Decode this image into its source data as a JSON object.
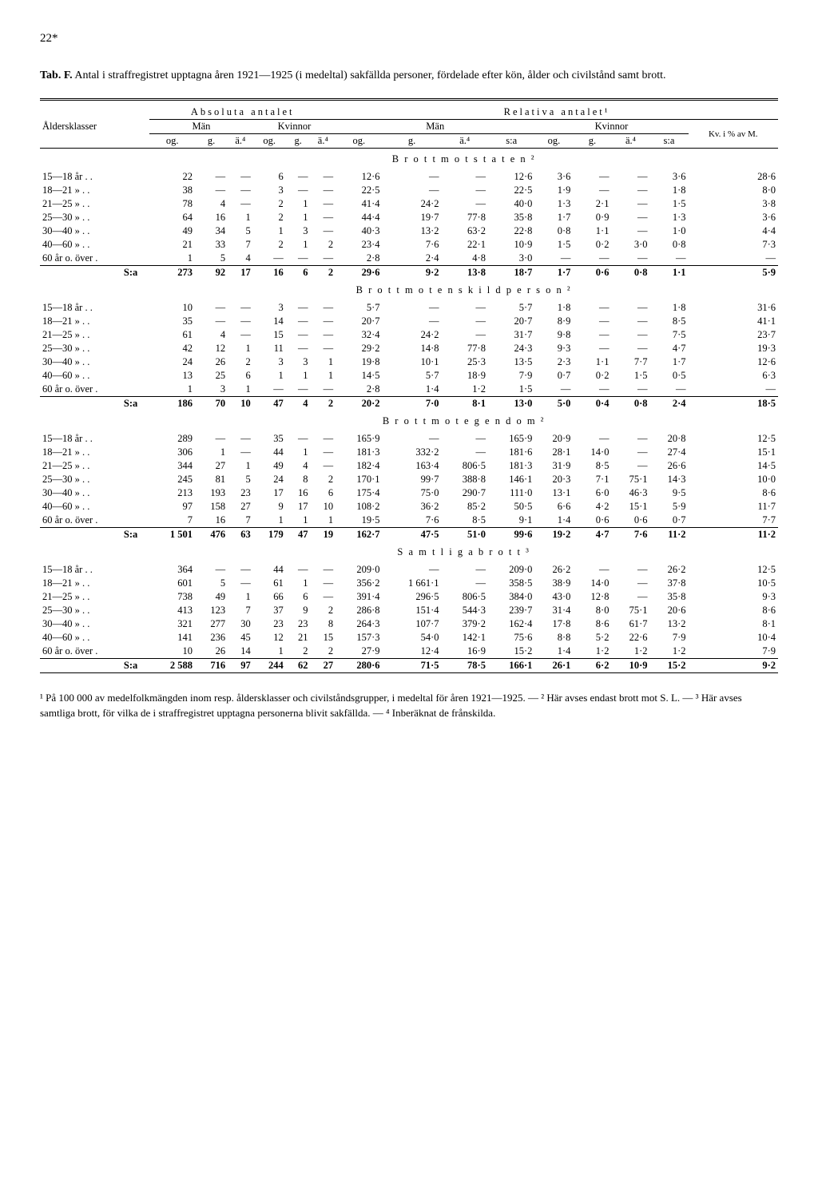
{
  "page": "22*",
  "title_lead": "Tab. F.",
  "title_rest": "Antal i straffregistret upptagna åren 1921—1925 (i medeltal) sakfällda personer, fördelade efter kön, ålder och civilstånd samt brott.",
  "head": {
    "abs": "Absoluta antalet",
    "rel": "Relativa antalet¹",
    "klass": "Åldersklasser",
    "man": "Män",
    "kv": "Kvinnor",
    "kvi": "Kv. i % av M.",
    "og": "og.",
    "g": "g.",
    "a4": "ä.⁴",
    "sa": "s:a"
  },
  "sections": [
    {
      "title": "B r o t t   m o t   s t a t e n ²",
      "rows": [
        {
          "k": "15—18 år  . .",
          "c": [
            "22",
            "—",
            "—",
            "6",
            "—",
            "—",
            "12·6",
            "—",
            "—",
            "12·6",
            "3·6",
            "—",
            "—",
            "3·6",
            "28·6"
          ]
        },
        {
          "k": "18—21  »  . .",
          "c": [
            "38",
            "—",
            "—",
            "3",
            "—",
            "—",
            "22·5",
            "—",
            "—",
            "22·5",
            "1·9",
            "—",
            "—",
            "1·8",
            "8·0"
          ]
        },
        {
          "k": "21—25  »  . .",
          "c": [
            "78",
            "4",
            "—",
            "2",
            "1",
            "—",
            "41·4",
            "24·2",
            "—",
            "40·0",
            "1·3",
            "2·1",
            "—",
            "1·5",
            "3·8"
          ]
        },
        {
          "k": "25—30  »  . .",
          "c": [
            "64",
            "16",
            "1",
            "2",
            "1",
            "—",
            "44·4",
            "19·7",
            "77·8",
            "35·8",
            "1·7",
            "0·9",
            "—",
            "1·3",
            "3·6"
          ]
        },
        {
          "k": "30—40  »  . .",
          "c": [
            "49",
            "34",
            "5",
            "1",
            "3",
            "—",
            "40·3",
            "13·2",
            "63·2",
            "22·8",
            "0·8",
            "1·1",
            "—",
            "1·0",
            "4·4"
          ]
        },
        {
          "k": "40—60  »  . .",
          "c": [
            "21",
            "33",
            "7",
            "2",
            "1",
            "2",
            "23·4",
            "7·6",
            "22·1",
            "10·9",
            "1·5",
            "0·2",
            "3·0",
            "0·8",
            "7·3"
          ]
        },
        {
          "k": "60 år o. över .",
          "c": [
            "1",
            "5",
            "4",
            "—",
            "—",
            "—",
            "2·8",
            "2·4",
            "4·8",
            "3·0",
            "—",
            "—",
            "—",
            "—",
            "—"
          ]
        }
      ],
      "sum": {
        "k": "S:a",
        "c": [
          "273",
          "92",
          "17",
          "16",
          "6",
          "2",
          "29·6",
          "9·2",
          "13·8",
          "18·7",
          "1·7",
          "0·6",
          "0·8",
          "1·1",
          "5·9"
        ]
      }
    },
    {
      "title": "B r o t t   m o t   e n s k i l d   p e r s o n ²",
      "rows": [
        {
          "k": "15—18 år  . .",
          "c": [
            "10",
            "—",
            "—",
            "3",
            "—",
            "—",
            "5·7",
            "—",
            "—",
            "5·7",
            "1·8",
            "—",
            "—",
            "1·8",
            "31·6"
          ]
        },
        {
          "k": "18—21  »  . .",
          "c": [
            "35",
            "—",
            "—",
            "14",
            "—",
            "—",
            "20·7",
            "—",
            "—",
            "20·7",
            "8·9",
            "—",
            "—",
            "8·5",
            "41·1"
          ]
        },
        {
          "k": "21—25  »  . .",
          "c": [
            "61",
            "4",
            "—",
            "15",
            "—",
            "—",
            "32·4",
            "24·2",
            "—",
            "31·7",
            "9·8",
            "—",
            "—",
            "7·5",
            "23·7"
          ]
        },
        {
          "k": "25—30  »  . .",
          "c": [
            "42",
            "12",
            "1",
            "11",
            "—",
            "—",
            "29·2",
            "14·8",
            "77·8",
            "24·3",
            "9·3",
            "—",
            "—",
            "4·7",
            "19·3"
          ]
        },
        {
          "k": "30—40  »  . .",
          "c": [
            "24",
            "26",
            "2",
            "3",
            "3",
            "1",
            "19·8",
            "10·1",
            "25·3",
            "13·5",
            "2·3",
            "1·1",
            "7·7",
            "1·7",
            "12·6"
          ]
        },
        {
          "k": "40—60  »  . .",
          "c": [
            "13",
            "25",
            "6",
            "1",
            "1",
            "1",
            "14·5",
            "5·7",
            "18·9",
            "7·9",
            "0·7",
            "0·2",
            "1·5",
            "0·5",
            "6·3"
          ]
        },
        {
          "k": "60 år o. över .",
          "c": [
            "1",
            "3",
            "1",
            "—",
            "—",
            "—",
            "2·8",
            "1·4",
            "1·2",
            "1·5",
            "—",
            "—",
            "—",
            "—",
            "—"
          ]
        }
      ],
      "sum": {
        "k": "S:a",
        "c": [
          "186",
          "70",
          "10",
          "47",
          "4",
          "2",
          "20·2",
          "7·0",
          "8·1",
          "13·0",
          "5·0",
          "0·4",
          "0·8",
          "2·4",
          "18·5"
        ]
      }
    },
    {
      "title": "B r o t t   m o t   e g e n d o m ²",
      "rows": [
        {
          "k": "15—18 år  . .",
          "c": [
            "289",
            "—",
            "—",
            "35",
            "—",
            "—",
            "165·9",
            "—",
            "—",
            "165·9",
            "20·9",
            "—",
            "—",
            "20·8",
            "12·5"
          ]
        },
        {
          "k": "18—21  »  . .",
          "c": [
            "306",
            "1",
            "—",
            "44",
            "1",
            "—",
            "181·3",
            "332·2",
            "—",
            "181·6",
            "28·1",
            "14·0",
            "—",
            "27·4",
            "15·1"
          ]
        },
        {
          "k": "21—25  »  . .",
          "c": [
            "344",
            "27",
            "1",
            "49",
            "4",
            "—",
            "182·4",
            "163·4",
            "806·5",
            "181·3",
            "31·9",
            "8·5",
            "—",
            "26·6",
            "14·5"
          ]
        },
        {
          "k": "25—30  »  . .",
          "c": [
            "245",
            "81",
            "5",
            "24",
            "8",
            "2",
            "170·1",
            "99·7",
            "388·8",
            "146·1",
            "20·3",
            "7·1",
            "75·1",
            "14·3",
            "10·0"
          ]
        },
        {
          "k": "30—40  »  . .",
          "c": [
            "213",
            "193",
            "23",
            "17",
            "16",
            "6",
            "175·4",
            "75·0",
            "290·7",
            "111·0",
            "13·1",
            "6·0",
            "46·3",
            "9·5",
            "8·6"
          ]
        },
        {
          "k": "40—60  »  . .",
          "c": [
            "97",
            "158",
            "27",
            "9",
            "17",
            "10",
            "108·2",
            "36·2",
            "85·2",
            "50·5",
            "6·6",
            "4·2",
            "15·1",
            "5·9",
            "11·7"
          ]
        },
        {
          "k": "60 år o. över .",
          "c": [
            "7",
            "16",
            "7",
            "1",
            "1",
            "1",
            "19·5",
            "7·6",
            "8·5",
            "9·1",
            "1·4",
            "0·6",
            "0·6",
            "0·7",
            "7·7"
          ]
        }
      ],
      "sum": {
        "k": "S:a",
        "c": [
          "1 501",
          "476",
          "63",
          "179",
          "47",
          "19",
          "162·7",
          "47·5",
          "51·0",
          "99·6",
          "19·2",
          "4·7",
          "7·6",
          "11·2",
          "11·2"
        ]
      }
    },
    {
      "title": "S a m t l i g a   b r o t t ³",
      "rows": [
        {
          "k": "15—18 år  . .",
          "c": [
            "364",
            "—",
            "—",
            "44",
            "—",
            "—",
            "209·0",
            "—",
            "—",
            "209·0",
            "26·2",
            "—",
            "—",
            "26·2",
            "12·5"
          ]
        },
        {
          "k": "18—21  »  . .",
          "c": [
            "601",
            "5",
            "—",
            "61",
            "1",
            "—",
            "356·2",
            "1 661·1",
            "—",
            "358·5",
            "38·9",
            "14·0",
            "—",
            "37·8",
            "10·5"
          ]
        },
        {
          "k": "21—25  »  . .",
          "c": [
            "738",
            "49",
            "1",
            "66",
            "6",
            "—",
            "391·4",
            "296·5",
            "806·5",
            "384·0",
            "43·0",
            "12·8",
            "—",
            "35·8",
            "9·3"
          ]
        },
        {
          "k": "25—30  »  . .",
          "c": [
            "413",
            "123",
            "7",
            "37",
            "9",
            "2",
            "286·8",
            "151·4",
            "544·3",
            "239·7",
            "31·4",
            "8·0",
            "75·1",
            "20·6",
            "8·6"
          ]
        },
        {
          "k": "30—40  »  . .",
          "c": [
            "321",
            "277",
            "30",
            "23",
            "23",
            "8",
            "264·3",
            "107·7",
            "379·2",
            "162·4",
            "17·8",
            "8·6",
            "61·7",
            "13·2",
            "8·1"
          ]
        },
        {
          "k": "40—60  »  . .",
          "c": [
            "141",
            "236",
            "45",
            "12",
            "21",
            "15",
            "157·3",
            "54·0",
            "142·1",
            "75·6",
            "8·8",
            "5·2",
            "22·6",
            "7·9",
            "10·4"
          ]
        },
        {
          "k": "60 år o. över .",
          "c": [
            "10",
            "26",
            "14",
            "1",
            "2",
            "2",
            "27·9",
            "12·4",
            "16·9",
            "15·2",
            "1·4",
            "1·2",
            "1·2",
            "1·2",
            "7·9"
          ]
        }
      ],
      "sum": {
        "k": "S:a",
        "c": [
          "2 588",
          "716",
          "97",
          "244",
          "62",
          "27",
          "280·6",
          "71·5",
          "78·5",
          "166·1",
          "26·1",
          "6·2",
          "10·9",
          "15·2",
          "9·2"
        ]
      }
    }
  ],
  "footnote": "¹ På 100 000 av medelfolkmängden inom resp. åldersklasser och civilståndsgrupper, i medeltal för åren 1921—1925. — ² Här avses endast brott mot S. L. — ³ Här avses samtliga brott, för vilka de i straffregistret upptagna personerna blivit sakfällda. — ⁴ Inberäknat de frånskilda."
}
